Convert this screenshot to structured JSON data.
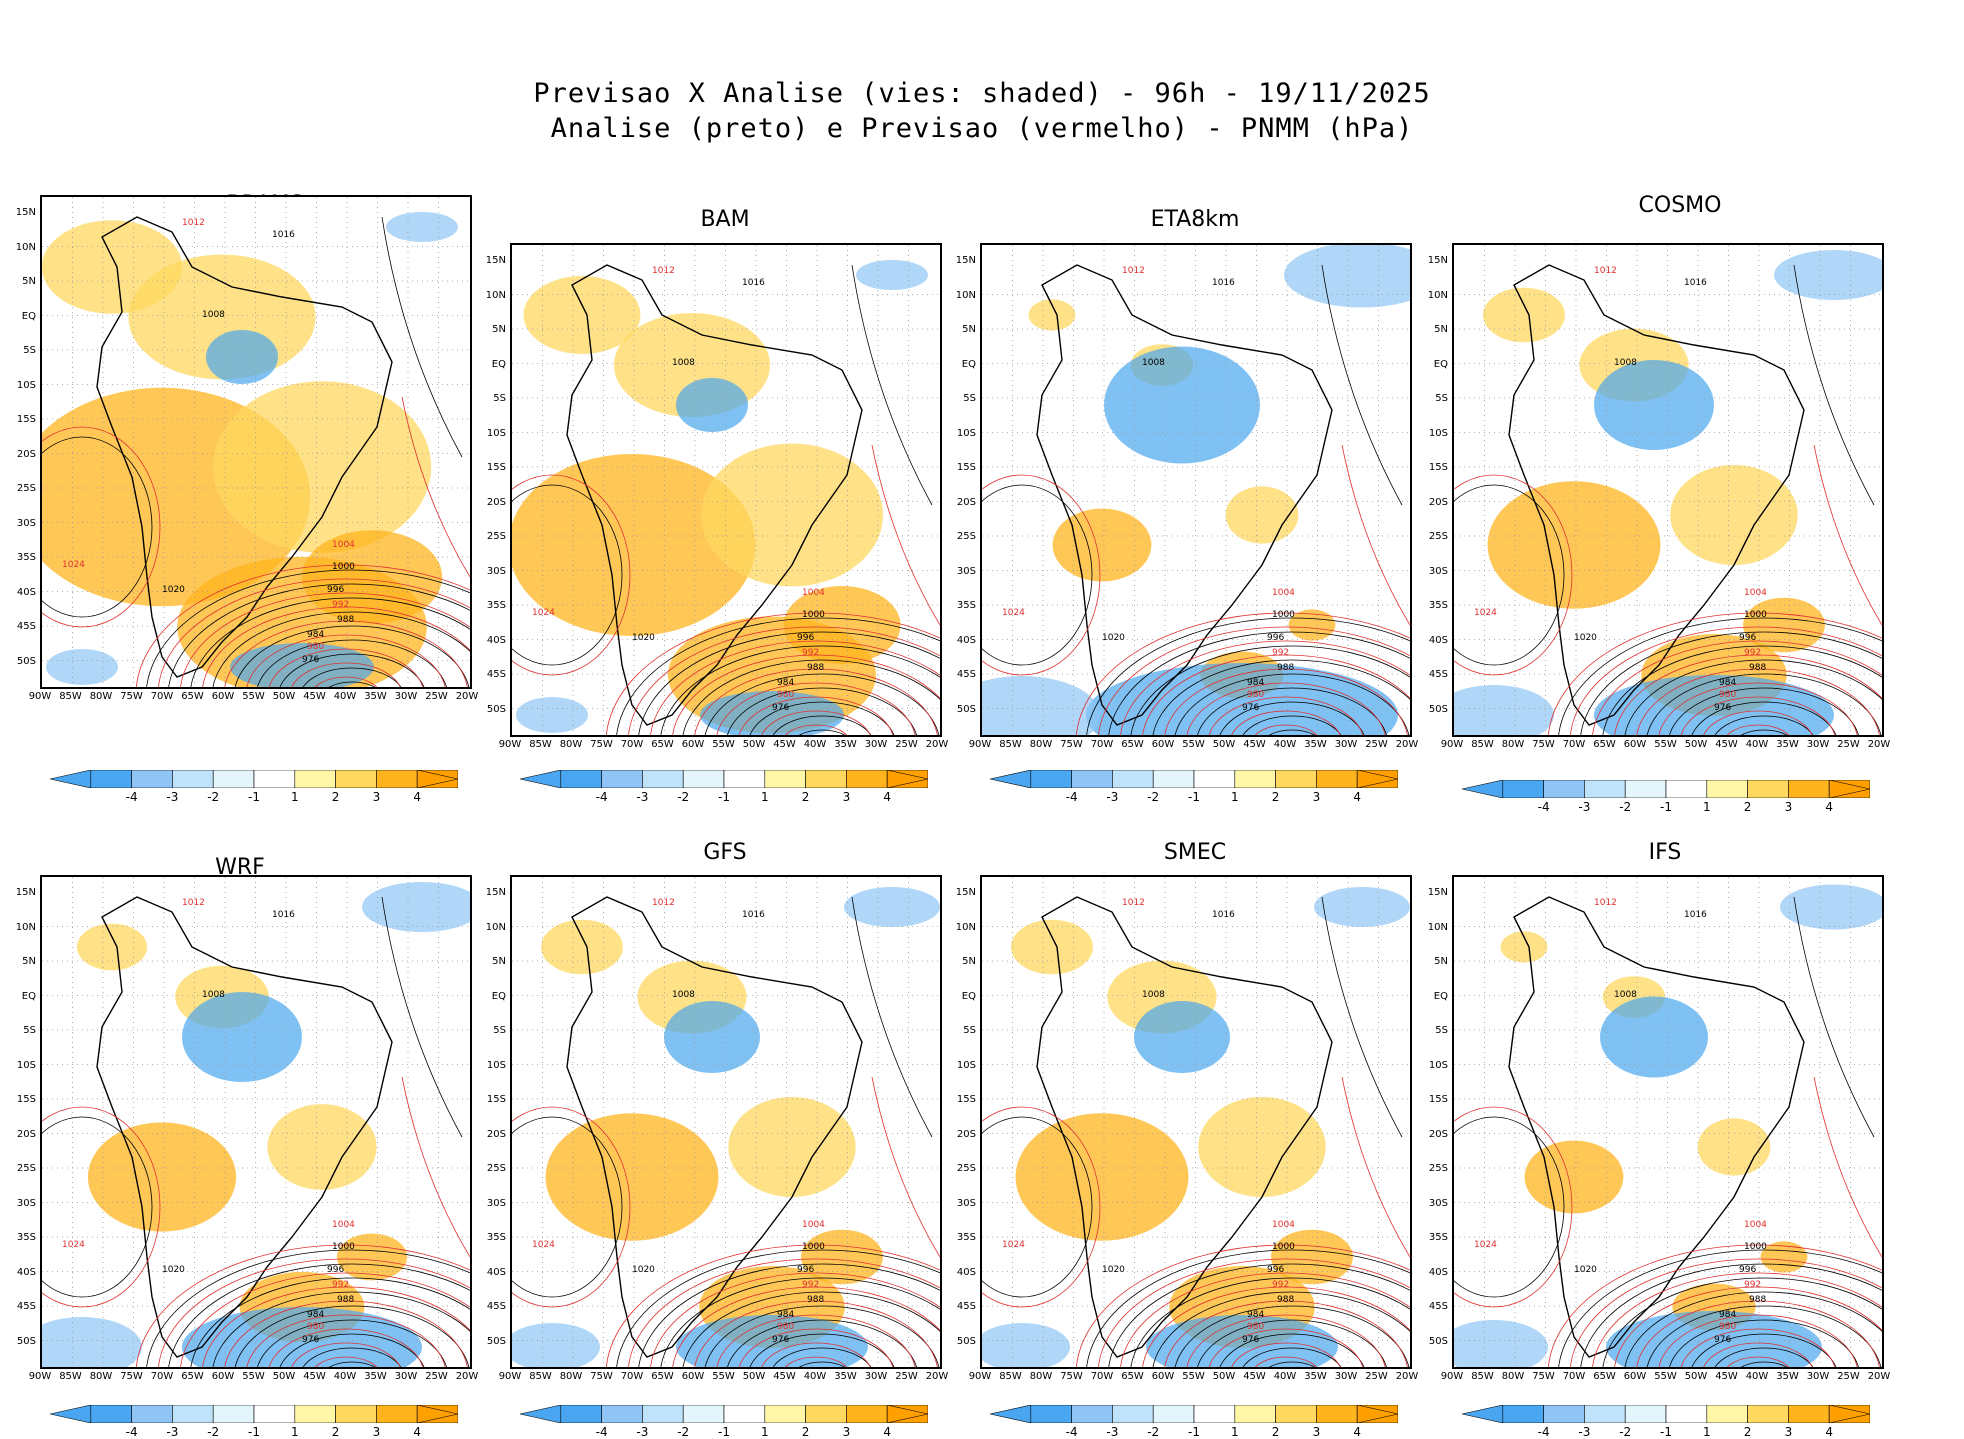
{
  "header": {
    "title_line1": "Previsao X Analise (vies: shaded) - 96h - 19/11/2025",
    "title_line2": "Analise (preto) e Previsao (vermelho) - PNMM (hPa)"
  },
  "panels": [
    {
      "name": "BRAMS"
    },
    {
      "name": "BAM"
    },
    {
      "name": "ETA8km"
    },
    {
      "name": "COSMO"
    },
    {
      "name": "WRF"
    },
    {
      "name": "GFS"
    },
    {
      "name": "SMEC"
    },
    {
      "name": "IFS"
    }
  ],
  "lat_labels": [
    "15N",
    "10N",
    "5N",
    "EQ",
    "5S",
    "10S",
    "15S",
    "20S",
    "25S",
    "30S",
    "35S",
    "40S",
    "45S",
    "50S"
  ],
  "lon_labels": [
    "90W",
    "85W",
    "80W",
    "75W",
    "70W",
    "65W",
    "60W",
    "55W",
    "50W",
    "45W",
    "40W",
    "35W",
    "30W",
    "25W",
    "20W"
  ],
  "colorbar": {
    "labels": [
      "-4",
      "-3",
      "-2",
      "-1",
      "1",
      "2",
      "3",
      "4"
    ],
    "colors": [
      "#4aa6f0",
      "#8fc4f5",
      "#bfe3fb",
      "#e4f6fc",
      "#ffffff",
      "#fff6a8",
      "#ffd860",
      "#ffb41e",
      "#ffa000"
    ]
  },
  "isobars": {
    "labels": [
      "1012",
      "1016",
      "1008",
      "1004",
      "1000",
      "996",
      "992",
      "988",
      "984",
      "980",
      "976",
      "1020",
      "1024"
    ]
  },
  "colors": {
    "analysis": "#000000",
    "forecast": "#e03030"
  }
}
